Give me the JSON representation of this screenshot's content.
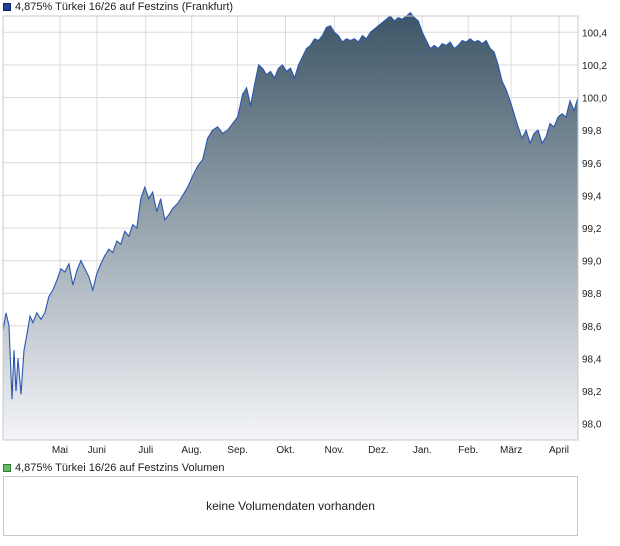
{
  "chart_data": [
    {
      "type": "area",
      "legend": "4,875% Türkei 16/26 auf Festzins (Frankfurt)",
      "legend_placement": "top-left",
      "y_axis_side": "right",
      "grid": true,
      "colors": {
        "line": "#2b56b0",
        "fill_top": "#3c5566",
        "fill_bottom": "#f4f5f8",
        "grid": "#dcdcdc",
        "frame": "#c8c8c8"
      },
      "ylim": [
        97.9,
        100.5
      ],
      "y_ticks": [
        "98,0",
        "98,2",
        "98,4",
        "98,6",
        "98,8",
        "99,0",
        "99,2",
        "99,4",
        "99,6",
        "99,8",
        "100,0",
        "100,2",
        "100,4"
      ],
      "y_tick_values": [
        98.0,
        98.2,
        98.4,
        98.6,
        98.8,
        99.0,
        99.2,
        99.4,
        99.6,
        99.8,
        100.0,
        100.2,
        100.4
      ],
      "xlim": [
        0,
        57.6
      ],
      "x_ticks": [
        "Mai",
        "Juni",
        "Juli",
        "Aug.",
        "Sep.",
        "Okt.",
        "Nov.",
        "Dez.",
        "Jan.",
        "Feb.",
        "März",
        "April"
      ],
      "x_tick_positions": [
        5.7,
        9.4,
        14.3,
        18.9,
        23.5,
        28.3,
        33.2,
        37.6,
        42.0,
        46.6,
        50.9,
        55.7
      ],
      "points": [
        [
          0.0,
          98.57
        ],
        [
          0.3,
          98.68
        ],
        [
          0.6,
          98.6
        ],
        [
          0.9,
          98.15
        ],
        [
          1.1,
          98.45
        ],
        [
          1.3,
          98.2
        ],
        [
          1.5,
          98.4
        ],
        [
          1.8,
          98.18
        ],
        [
          2.1,
          98.45
        ],
        [
          2.4,
          98.55
        ],
        [
          2.7,
          98.66
        ],
        [
          3.0,
          98.62
        ],
        [
          3.4,
          98.68
        ],
        [
          3.8,
          98.64
        ],
        [
          4.2,
          98.68
        ],
        [
          4.6,
          98.78
        ],
        [
          5.0,
          98.82
        ],
        [
          5.4,
          98.88
        ],
        [
          5.8,
          98.95
        ],
        [
          6.2,
          98.93
        ],
        [
          6.6,
          98.98
        ],
        [
          7.0,
          98.85
        ],
        [
          7.4,
          98.94
        ],
        [
          7.8,
          99.0
        ],
        [
          8.2,
          98.95
        ],
        [
          8.6,
          98.9
        ],
        [
          9.0,
          98.82
        ],
        [
          9.4,
          98.92
        ],
        [
          9.8,
          98.98
        ],
        [
          10.2,
          99.03
        ],
        [
          10.6,
          99.07
        ],
        [
          11.0,
          99.05
        ],
        [
          11.4,
          99.12
        ],
        [
          11.8,
          99.1
        ],
        [
          12.2,
          99.18
        ],
        [
          12.6,
          99.15
        ],
        [
          13.0,
          99.22
        ],
        [
          13.4,
          99.2
        ],
        [
          13.8,
          99.38
        ],
        [
          14.2,
          99.45
        ],
        [
          14.6,
          99.38
        ],
        [
          15.0,
          99.42
        ],
        [
          15.4,
          99.3
        ],
        [
          15.8,
          99.38
        ],
        [
          16.2,
          99.25
        ],
        [
          16.6,
          99.28
        ],
        [
          17.0,
          99.32
        ],
        [
          17.5,
          99.35
        ],
        [
          18.0,
          99.4
        ],
        [
          18.5,
          99.45
        ],
        [
          19.0,
          99.52
        ],
        [
          19.5,
          99.58
        ],
        [
          20.0,
          99.62
        ],
        [
          20.5,
          99.75
        ],
        [
          21.0,
          99.8
        ],
        [
          21.5,
          99.82
        ],
        [
          22.0,
          99.78
        ],
        [
          22.5,
          99.8
        ],
        [
          23.0,
          99.84
        ],
        [
          23.5,
          99.88
        ],
        [
          24.0,
          100.02
        ],
        [
          24.4,
          100.06
        ],
        [
          24.8,
          99.95
        ],
        [
          25.2,
          100.08
        ],
        [
          25.6,
          100.2
        ],
        [
          26.0,
          100.18
        ],
        [
          26.4,
          100.14
        ],
        [
          26.8,
          100.16
        ],
        [
          27.2,
          100.12
        ],
        [
          27.6,
          100.18
        ],
        [
          28.0,
          100.2
        ],
        [
          28.4,
          100.16
        ],
        [
          28.8,
          100.18
        ],
        [
          29.2,
          100.12
        ],
        [
          29.6,
          100.2
        ],
        [
          30.0,
          100.25
        ],
        [
          30.4,
          100.3
        ],
        [
          30.8,
          100.32
        ],
        [
          31.2,
          100.36
        ],
        [
          31.6,
          100.35
        ],
        [
          32.0,
          100.38
        ],
        [
          32.4,
          100.43
        ],
        [
          32.8,
          100.44
        ],
        [
          33.2,
          100.4
        ],
        [
          33.6,
          100.38
        ],
        [
          34.0,
          100.34
        ],
        [
          34.4,
          100.36
        ],
        [
          34.8,
          100.35
        ],
        [
          35.2,
          100.36
        ],
        [
          35.6,
          100.34
        ],
        [
          36.0,
          100.38
        ],
        [
          36.4,
          100.36
        ],
        [
          36.8,
          100.4
        ],
        [
          37.2,
          100.42
        ],
        [
          37.6,
          100.44
        ],
        [
          38.0,
          100.46
        ],
        [
          38.4,
          100.48
        ],
        [
          38.8,
          100.5
        ],
        [
          39.2,
          100.47
        ],
        [
          39.6,
          100.49
        ],
        [
          40.0,
          100.48
        ],
        [
          40.4,
          100.5
        ],
        [
          40.8,
          100.52
        ],
        [
          41.2,
          100.49
        ],
        [
          41.6,
          100.47
        ],
        [
          42.0,
          100.4
        ],
        [
          42.4,
          100.35
        ],
        [
          42.8,
          100.3
        ],
        [
          43.2,
          100.32
        ],
        [
          43.6,
          100.3
        ],
        [
          44.0,
          100.33
        ],
        [
          44.4,
          100.32
        ],
        [
          44.8,
          100.34
        ],
        [
          45.2,
          100.3
        ],
        [
          45.6,
          100.32
        ],
        [
          46.0,
          100.35
        ],
        [
          46.4,
          100.34
        ],
        [
          46.8,
          100.36
        ],
        [
          47.2,
          100.34
        ],
        [
          47.6,
          100.35
        ],
        [
          48.0,
          100.33
        ],
        [
          48.4,
          100.35
        ],
        [
          48.8,
          100.3
        ],
        [
          49.2,
          100.28
        ],
        [
          49.6,
          100.2
        ],
        [
          50.0,
          100.1
        ],
        [
          50.4,
          100.05
        ],
        [
          50.8,
          99.98
        ],
        [
          51.2,
          99.9
        ],
        [
          51.6,
          99.82
        ],
        [
          52.0,
          99.75
        ],
        [
          52.4,
          99.8
        ],
        [
          52.8,
          99.72
        ],
        [
          53.2,
          99.78
        ],
        [
          53.6,
          99.8
        ],
        [
          54.0,
          99.72
        ],
        [
          54.4,
          99.76
        ],
        [
          54.8,
          99.84
        ],
        [
          55.2,
          99.82
        ],
        [
          55.6,
          99.88
        ],
        [
          56.0,
          99.9
        ],
        [
          56.4,
          99.88
        ],
        [
          56.8,
          99.98
        ],
        [
          57.2,
          99.92
        ],
        [
          57.6,
          100.0
        ]
      ]
    },
    {
      "type": "bar",
      "legend": "4,875% Türkei 16/26 auf Festzins Volumen",
      "message": "keine Volumendaten vorhanden"
    }
  ]
}
